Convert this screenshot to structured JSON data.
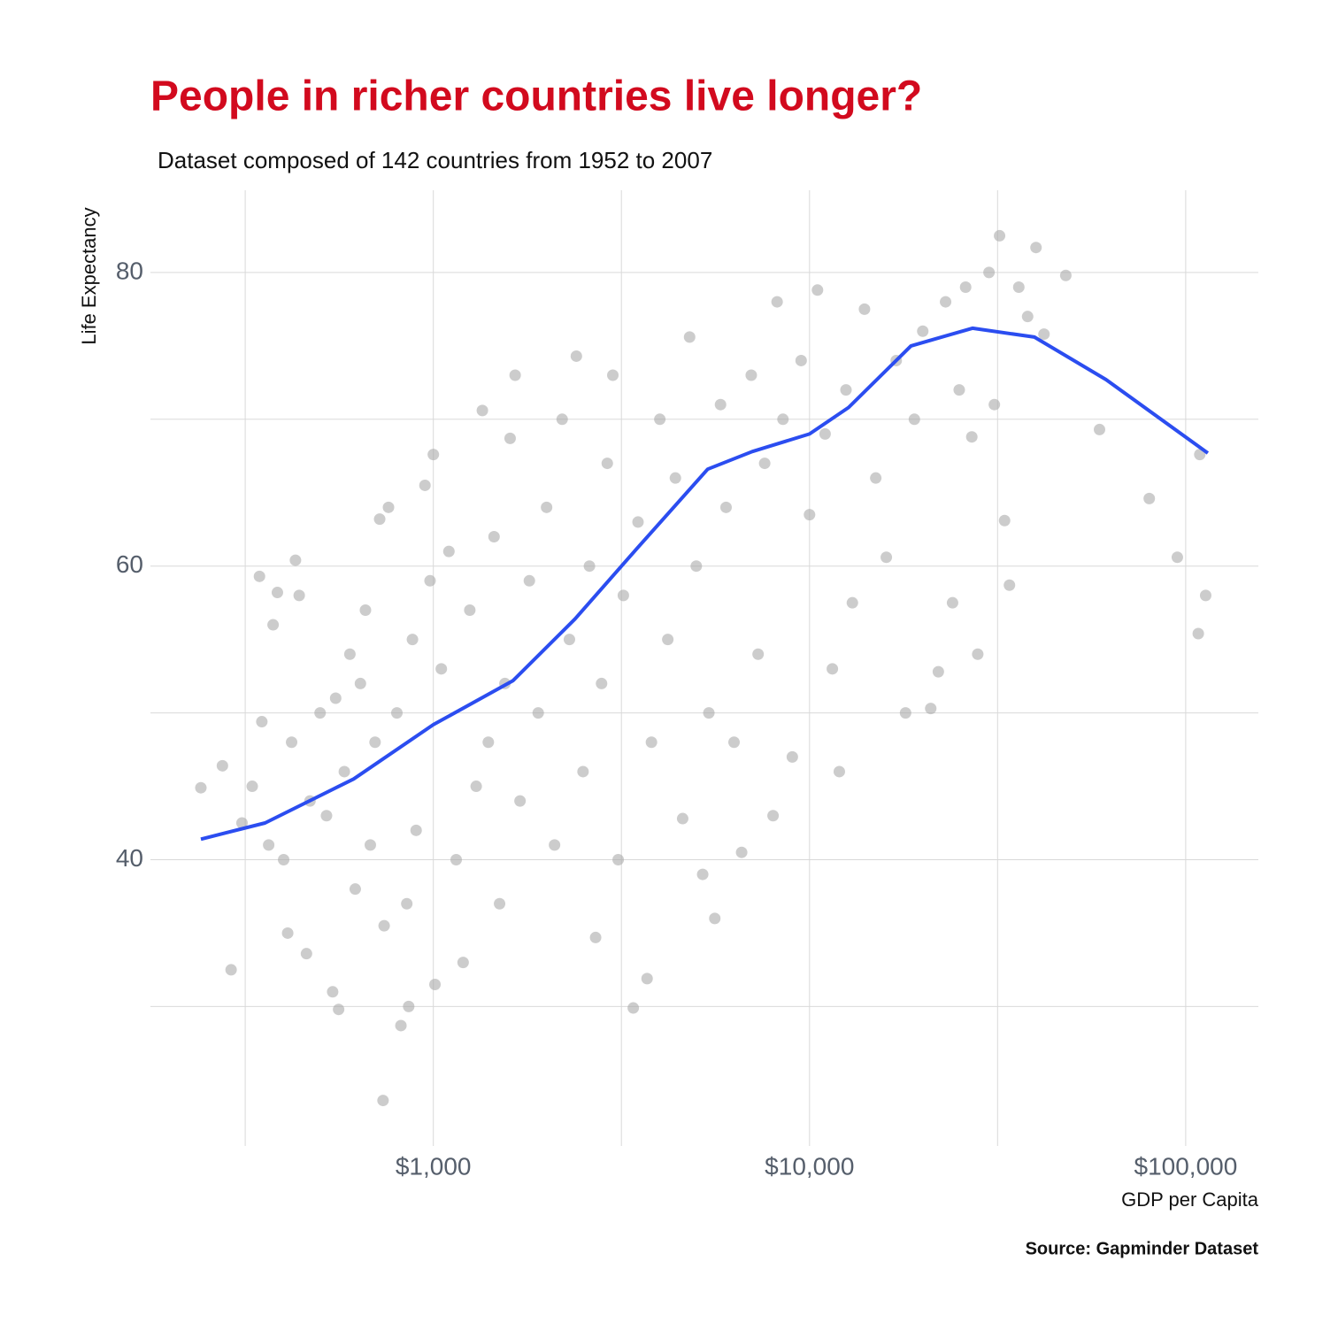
{
  "chart_data": {
    "type": "scatter",
    "title": "People in richer countries live longer?",
    "subtitle": "Dataset composed of 142 countries from 1952 to 2007",
    "x_label": "GDP per Capita",
    "y_label": "Life Expectancy",
    "caption": "Source: Gapminder Dataset",
    "xscale": "log",
    "xlim": [
      177,
      156000
    ],
    "ylim": [
      20.5,
      85.6
    ],
    "xticks": [
      {
        "value": 1000,
        "label": "$1,000"
      },
      {
        "value": 10000,
        "label": "$10,000"
      },
      {
        "value": 100000,
        "label": "$100,000"
      }
    ],
    "yticks": [
      40,
      60,
      80
    ],
    "x_minor_grid": [
      316.2,
      3162,
      31620
    ],
    "y_minor_grid": [
      30,
      50,
      70
    ],
    "grid": true,
    "color": "#aaaaaa",
    "x": [
      241,
      275,
      290,
      310,
      330,
      345,
      350,
      365,
      375,
      385,
      400,
      410,
      420,
      430,
      440,
      460,
      470,
      500,
      520,
      540,
      550,
      560,
      580,
      600,
      620,
      640,
      660,
      680,
      700,
      720,
      740,
      760,
      735,
      800,
      820,
      850,
      860,
      880,
      900,
      950,
      980,
      1000,
      1010,
      1050,
      1100,
      1150,
      1200,
      1250,
      1300,
      1350,
      1400,
      1450,
      1500,
      1550,
      1600,
      1650,
      1700,
      1800,
      1900,
      2000,
      2100,
      2200,
      2300,
      2400,
      2500,
      2600,
      2700,
      2800,
      2900,
      3000,
      3100,
      3200,
      3400,
      3500,
      3700,
      3800,
      4000,
      4200,
      4400,
      4600,
      4800,
      5000,
      5200,
      5400,
      5600,
      5800,
      6000,
      6300,
      6600,
      7000,
      7300,
      7600,
      8000,
      8200,
      8500,
      9000,
      9500,
      10000,
      10500,
      11000,
      11500,
      12000,
      12500,
      13000,
      14000,
      15000,
      16000,
      17000,
      18000,
      19000,
      20000,
      21000,
      22000,
      23000,
      24000,
      25000,
      26000,
      27000,
      28000,
      30000,
      31000,
      32000,
      33000,
      34000,
      36000,
      38000,
      40000,
      42000,
      48000,
      59000,
      80000,
      95000,
      108000,
      109000,
      113000
    ],
    "values": [
      44.9,
      46.4,
      32.5,
      42.5,
      45,
      59.3,
      49.4,
      41,
      56,
      58.2,
      40,
      35,
      48,
      60.4,
      58,
      33.6,
      44,
      50,
      43,
      31,
      51,
      29.8,
      46,
      54,
      38,
      52,
      57,
      41,
      48,
      63.2,
      35.5,
      64,
      23.6,
      50,
      28.7,
      37,
      30,
      55,
      42,
      65.5,
      59,
      67.6,
      31.5,
      53,
      61,
      40,
      33,
      57,
      45,
      70.6,
      48,
      62,
      37,
      52,
      68.7,
      73,
      44,
      59,
      50,
      64,
      41,
      70,
      55,
      74.3,
      46,
      60,
      34.7,
      52,
      67,
      73,
      40,
      58,
      29.9,
      63,
      31.9,
      48,
      70,
      55,
      66,
      42.8,
      75.6,
      60,
      39,
      50,
      36,
      71,
      64,
      48,
      40.5,
      73,
      54,
      67,
      43,
      78,
      70,
      47,
      74,
      63.5,
      78.8,
      69,
      53,
      46,
      72,
      57.5,
      77.5,
      66,
      60.6,
      74,
      50,
      70,
      76,
      50.3,
      52.8,
      78,
      57.5,
      72,
      79,
      68.8,
      54,
      80,
      71,
      82.5,
      63.1,
      58.7,
      79,
      77,
      81.7,
      75.8,
      79.8,
      69.3,
      64.6,
      60.6,
      55.4,
      67.6,
      58
    ],
    "trend": {
      "color": "#2b4df0",
      "x": [
        241,
        357,
        614,
        1000,
        1629,
        2380,
        3477,
        5360,
        7040,
        10000,
        12700,
        18600,
        27100,
        39600,
        61400,
        114500
      ],
      "values": [
        41.4,
        42.5,
        45.5,
        49.2,
        52.2,
        56.4,
        61.2,
        66.6,
        67.8,
        69,
        70.8,
        75,
        76.2,
        75.6,
        72.7,
        67.7
      ]
    }
  }
}
